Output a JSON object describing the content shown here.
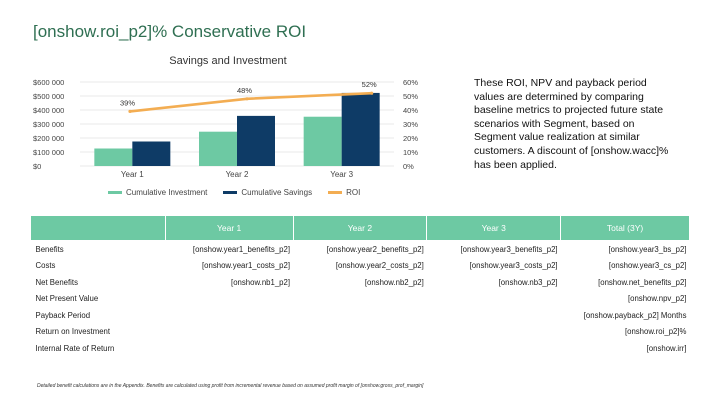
{
  "page_title": "[onshow.roi_p2]% Conservative ROI",
  "chart_data": {
    "type": "bar",
    "title": "Savings and Investment",
    "categories": [
      "Year 1",
      "Year 2",
      "Year 3"
    ],
    "series": [
      {
        "name": "Cumulative Investment",
        "kind": "bar",
        "axis": "left",
        "color": "#6dc9a3",
        "values": [
          125000,
          245000,
          352000
        ]
      },
      {
        "name": "Cumulative Savings",
        "kind": "bar",
        "axis": "left",
        "color": "#0e3b66",
        "values": [
          175000,
          358000,
          522000
        ]
      },
      {
        "name": "ROI",
        "kind": "line",
        "axis": "right",
        "color": "#f3ad52",
        "values": [
          39,
          48,
          52
        ],
        "labels": [
          "39%",
          "48%",
          "52%"
        ]
      }
    ],
    "ylim": [
      0,
      600000
    ],
    "yticks": [
      0,
      100000,
      200000,
      300000,
      400000,
      500000,
      600000
    ],
    "ytick_labels": [
      "$0",
      "$100 000",
      "$200 000",
      "$300 000",
      "$400 000",
      "$500 000",
      "$600 000"
    ],
    "y2lim": [
      0,
      60
    ],
    "y2ticks": [
      0,
      10,
      20,
      30,
      40,
      50,
      60
    ],
    "y2tick_labels": [
      "0%",
      "10%",
      "20%",
      "30%",
      "40%",
      "50%",
      "60%"
    ],
    "grid": true,
    "legend": "bottom"
  },
  "note": "These ROI, NPV and payback period values are determined by comparing baseline metrics to projected future state scenarios with Segment, based on Segment value realization at similar customers. A discount of [onshow.wacc]% has been applied.",
  "table": {
    "headers": [
      "",
      "Year 1",
      "Year 2",
      "Year 3",
      "Total (3Y)"
    ],
    "rows": [
      [
        "Benefits",
        "[onshow.year1_benefits_p2]",
        "[onshow.year2_benefits_p2]",
        "[onshow.year3_benefits_p2]",
        "[onshow.year3_bs_p2]"
      ],
      [
        "Costs",
        "[onshow.year1_costs_p2]",
        "[onshow.year2_costs_p2]",
        "[onshow.year3_costs_p2]",
        "[onshow.year3_cs_p2]"
      ],
      [
        "Net Benefits",
        "[onshow.nb1_p2]",
        "[onshow.nb2_p2]",
        "[onshow.nb3_p2]",
        "[onshow.net_benefits_p2]"
      ],
      [
        "Net Present Value",
        "",
        "",
        "",
        "[onshow.npv_p2]"
      ],
      [
        "Payback Period",
        "",
        "",
        "",
        "[onshow.payback_p2] Months"
      ],
      [
        "Return on Investment",
        "",
        "",
        "",
        "[onshow.roi_p2]%"
      ],
      [
        "Internal Rate of Return",
        "",
        "",
        "",
        "[onshow.irr]"
      ]
    ]
  },
  "footnote": "Detailed benefit calculations are in the Appendix. Benefits are calculated using profit from incremental revenue based on assumed profit margin of [onshow.gross_prof_margin]"
}
